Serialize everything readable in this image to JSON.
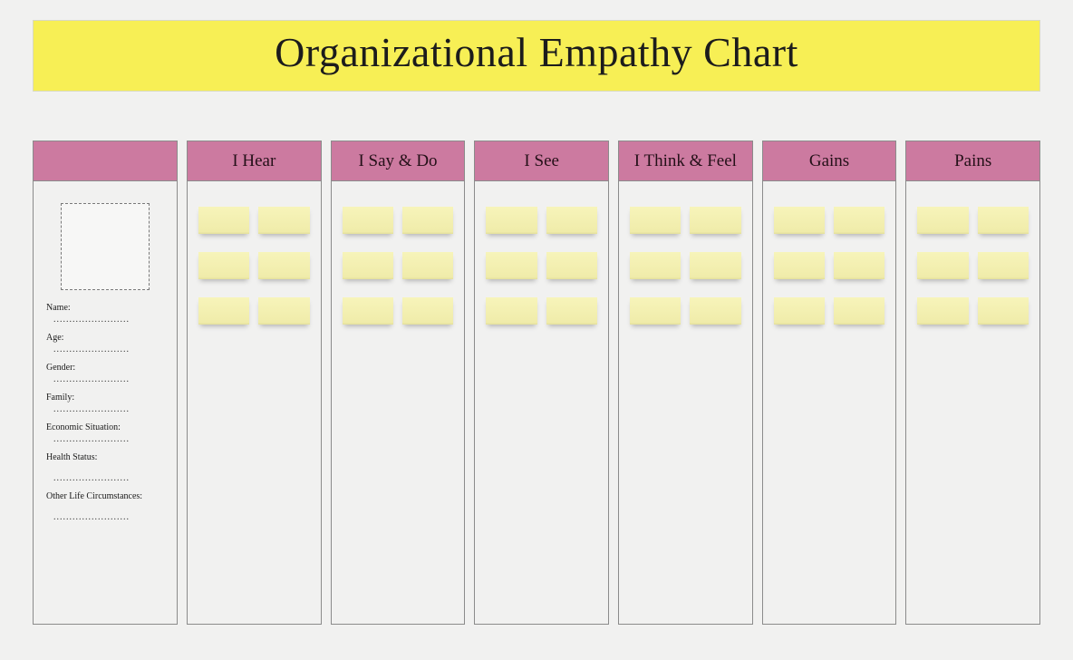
{
  "title": "Organizational Empathy Chart",
  "title_bg": "#f7ef55",
  "header_bg": "#cc7aa0",
  "border_color": "#8b8b8b",
  "page_bg": "#f1f1f0",
  "sticky_bg_top": "#f7f4ba",
  "sticky_bg_bottom": "#e4df9c",
  "profile": {
    "fields": [
      {
        "label": "Name:"
      },
      {
        "label": "Age:"
      },
      {
        "label": "Gender:"
      },
      {
        "label": "Family:"
      },
      {
        "label": "Economic Situation:"
      },
      {
        "label": "Health Status:"
      },
      {
        "label": "Other Life Circumstances:"
      }
    ]
  },
  "columns": [
    {
      "heading": "I Hear",
      "notes": 6
    },
    {
      "heading": "I Say & Do",
      "notes": 6
    },
    {
      "heading": "I See",
      "notes": 6
    },
    {
      "heading": "I Think & Feel",
      "notes": 6
    },
    {
      "heading": "Gains",
      "notes": 6
    },
    {
      "heading": "Pains",
      "notes": 6
    }
  ]
}
